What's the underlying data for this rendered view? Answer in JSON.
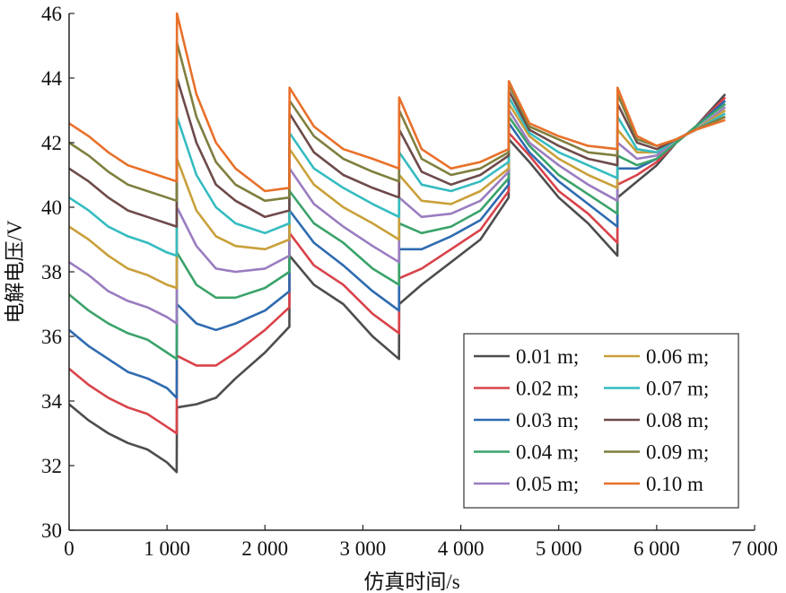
{
  "chart_data": {
    "type": "line",
    "title": "",
    "xlabel": "仿真时间/s",
    "ylabel": "电解电压/V",
    "xlim": [
      0,
      7000
    ],
    "ylim": [
      30,
      46
    ],
    "xticks": [
      0,
      1000,
      2000,
      3000,
      4000,
      5000,
      6000,
      7000
    ],
    "xtick_labels": [
      "0",
      "1 000",
      "2 000",
      "3 000",
      "4 000",
      "5 000",
      "6 000",
      "7 000"
    ],
    "yticks": [
      30,
      32,
      34,
      36,
      38,
      40,
      42,
      44,
      46
    ],
    "ytick_labels": [
      "30",
      "32",
      "34",
      "36",
      "38",
      "40",
      "42",
      "44",
      "46"
    ],
    "grid": false,
    "legend_position": "bottom-right",
    "x": [
      0,
      200,
      400,
      600,
      800,
      1000,
      1099,
      1101,
      1300,
      1500,
      1700,
      2000,
      2249,
      2251,
      2500,
      2800,
      3100,
      3369,
      3371,
      3600,
      3900,
      4200,
      4489,
      4491,
      4700,
      5000,
      5300,
      5599,
      5601,
      5800,
      6000,
      6200,
      6400,
      6700
    ],
    "series": [
      {
        "name": "0.01 m;",
        "color": "#4d4d4d",
        "values": [
          33.9,
          33.4,
          33.0,
          32.7,
          32.5,
          32.1,
          31.8,
          33.8,
          33.9,
          34.1,
          34.7,
          35.5,
          36.3,
          38.5,
          37.6,
          37.0,
          36.0,
          35.3,
          37.0,
          37.6,
          38.3,
          39.0,
          40.3,
          42.1,
          41.4,
          40.3,
          39.5,
          38.5,
          40.3,
          40.8,
          41.3,
          42.0,
          42.5,
          43.5
        ]
      },
      {
        "name": "0.02 m;",
        "color": "#d9434a",
        "values": [
          35.0,
          34.5,
          34.1,
          33.8,
          33.6,
          33.2,
          33.0,
          35.4,
          35.1,
          35.1,
          35.5,
          36.2,
          36.9,
          39.2,
          38.2,
          37.6,
          36.7,
          36.1,
          37.8,
          38.1,
          38.7,
          39.3,
          40.5,
          42.3,
          41.6,
          40.5,
          39.8,
          38.9,
          40.7,
          41.0,
          41.4,
          42.0,
          42.5,
          43.4
        ]
      },
      {
        "name": "0.03 m;",
        "color": "#2e6bb0",
        "values": [
          36.2,
          35.7,
          35.3,
          34.9,
          34.7,
          34.4,
          34.1,
          37.0,
          36.4,
          36.2,
          36.4,
          36.8,
          37.4,
          39.9,
          38.9,
          38.2,
          37.4,
          36.8,
          38.7,
          38.7,
          39.1,
          39.6,
          40.7,
          42.6,
          41.7,
          40.8,
          40.1,
          39.4,
          41.2,
          41.2,
          41.5,
          42.0,
          42.5,
          43.3
        ]
      },
      {
        "name": "0.04 m;",
        "color": "#3aa36a",
        "values": [
          37.3,
          36.8,
          36.4,
          36.1,
          35.9,
          35.5,
          35.3,
          38.6,
          37.6,
          37.2,
          37.2,
          37.5,
          38.0,
          40.5,
          39.5,
          38.9,
          38.1,
          37.6,
          39.5,
          39.2,
          39.4,
          39.9,
          40.9,
          42.8,
          41.9,
          41.0,
          40.4,
          39.8,
          41.6,
          41.3,
          41.5,
          42.0,
          42.5,
          43.2
        ]
      },
      {
        "name": "0.05 m;",
        "color": "#9a7cc0",
        "values": [
          38.3,
          37.9,
          37.4,
          37.1,
          36.9,
          36.6,
          36.4,
          40.0,
          38.8,
          38.1,
          38.0,
          38.1,
          38.5,
          41.2,
          40.1,
          39.4,
          38.8,
          38.3,
          40.3,
          39.7,
          39.8,
          40.2,
          41.1,
          43.0,
          42.0,
          41.3,
          40.7,
          40.2,
          42.0,
          41.5,
          41.6,
          42.1,
          42.4,
          43.1
        ]
      },
      {
        "name": "0.06 m;",
        "color": "#c9a03a",
        "values": [
          39.4,
          39.0,
          38.5,
          38.1,
          37.9,
          37.6,
          37.5,
          41.5,
          39.9,
          39.1,
          38.8,
          38.7,
          39.0,
          41.8,
          40.7,
          40.0,
          39.5,
          39.0,
          41.0,
          40.2,
          40.1,
          40.5,
          41.2,
          43.2,
          42.2,
          41.5,
          41.0,
          40.6,
          42.4,
          41.7,
          41.7,
          42.1,
          42.4,
          43.0
        ]
      },
      {
        "name": "0.07 m;",
        "color": "#35bcc0",
        "values": [
          40.3,
          39.9,
          39.4,
          39.1,
          38.9,
          38.6,
          38.5,
          42.8,
          41.0,
          40.0,
          39.5,
          39.2,
          39.5,
          42.3,
          41.2,
          40.6,
          40.1,
          39.7,
          41.7,
          40.7,
          40.5,
          40.8,
          41.4,
          43.4,
          42.3,
          41.7,
          41.3,
          40.9,
          42.8,
          41.8,
          41.7,
          42.1,
          42.4,
          42.9
        ]
      },
      {
        "name": "0.08 m;",
        "color": "#6e4a4a",
        "values": [
          41.2,
          40.8,
          40.3,
          39.9,
          39.7,
          39.5,
          39.4,
          44.0,
          42.0,
          40.7,
          40.2,
          39.7,
          39.9,
          42.9,
          41.7,
          41.0,
          40.6,
          40.3,
          42.4,
          41.1,
          40.7,
          41.0,
          41.6,
          43.6,
          42.4,
          41.9,
          41.5,
          41.3,
          43.2,
          42.0,
          41.8,
          42.1,
          42.4,
          42.8
        ]
      },
      {
        "name": "0.09 m;",
        "color": "#7f7f3f",
        "values": [
          42.0,
          41.6,
          41.1,
          40.7,
          40.5,
          40.3,
          40.2,
          45.1,
          42.8,
          41.4,
          40.7,
          40.2,
          40.3,
          43.3,
          42.2,
          41.5,
          41.1,
          40.8,
          43.0,
          41.5,
          41.0,
          41.2,
          41.7,
          43.8,
          42.5,
          42.1,
          41.7,
          41.6,
          43.5,
          42.1,
          41.9,
          42.1,
          42.4,
          42.8
        ]
      },
      {
        "name": "0.10 m",
        "color": "#e8702a",
        "values": [
          42.6,
          42.2,
          41.7,
          41.3,
          41.1,
          40.9,
          40.8,
          46.0,
          43.5,
          42.0,
          41.2,
          40.5,
          40.6,
          43.7,
          42.5,
          41.8,
          41.5,
          41.2,
          43.4,
          41.8,
          41.2,
          41.4,
          41.8,
          43.9,
          42.6,
          42.2,
          41.9,
          41.8,
          43.7,
          42.2,
          41.9,
          42.1,
          42.4,
          42.7
        ]
      }
    ]
  }
}
